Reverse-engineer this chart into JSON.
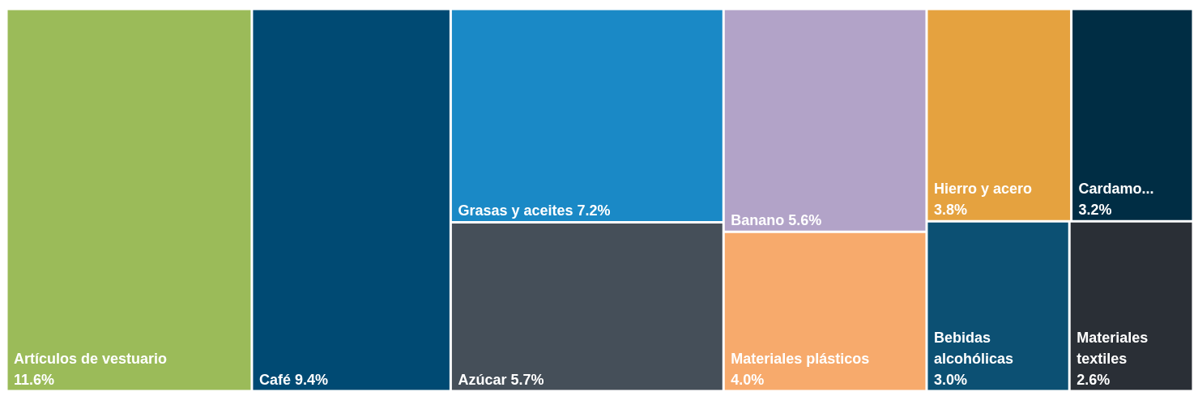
{
  "chart_data": {
    "type": "other",
    "categories": [
      "Artículos de vestuario",
      "Café",
      "Grasas y aceites",
      "Azúcar",
      "Banano",
      "Materiales plásticos",
      "Hierro y acero",
      "Cardamo...",
      "Bebidas alcohólicas",
      "Materiales textiles"
    ],
    "values": [
      11.6,
      9.4,
      7.2,
      5.7,
      5.6,
      4.0,
      3.8,
      3.2,
      3.0,
      2.6
    ],
    "value_labels": [
      "11.6%",
      "9.4%",
      "7.2%",
      "5.7%",
      "5.6%",
      "4.0%",
      "3.8%",
      "3.2%",
      "3.0%",
      "2.6%"
    ],
    "colors": [
      "#9bbb59",
      "#004a73",
      "#1a89c6",
      "#454f59",
      "#b2a3c8",
      "#f7aa6c",
      "#e5a23f",
      "#002d44",
      "#0c5073",
      "#2a2f36"
    ]
  }
}
